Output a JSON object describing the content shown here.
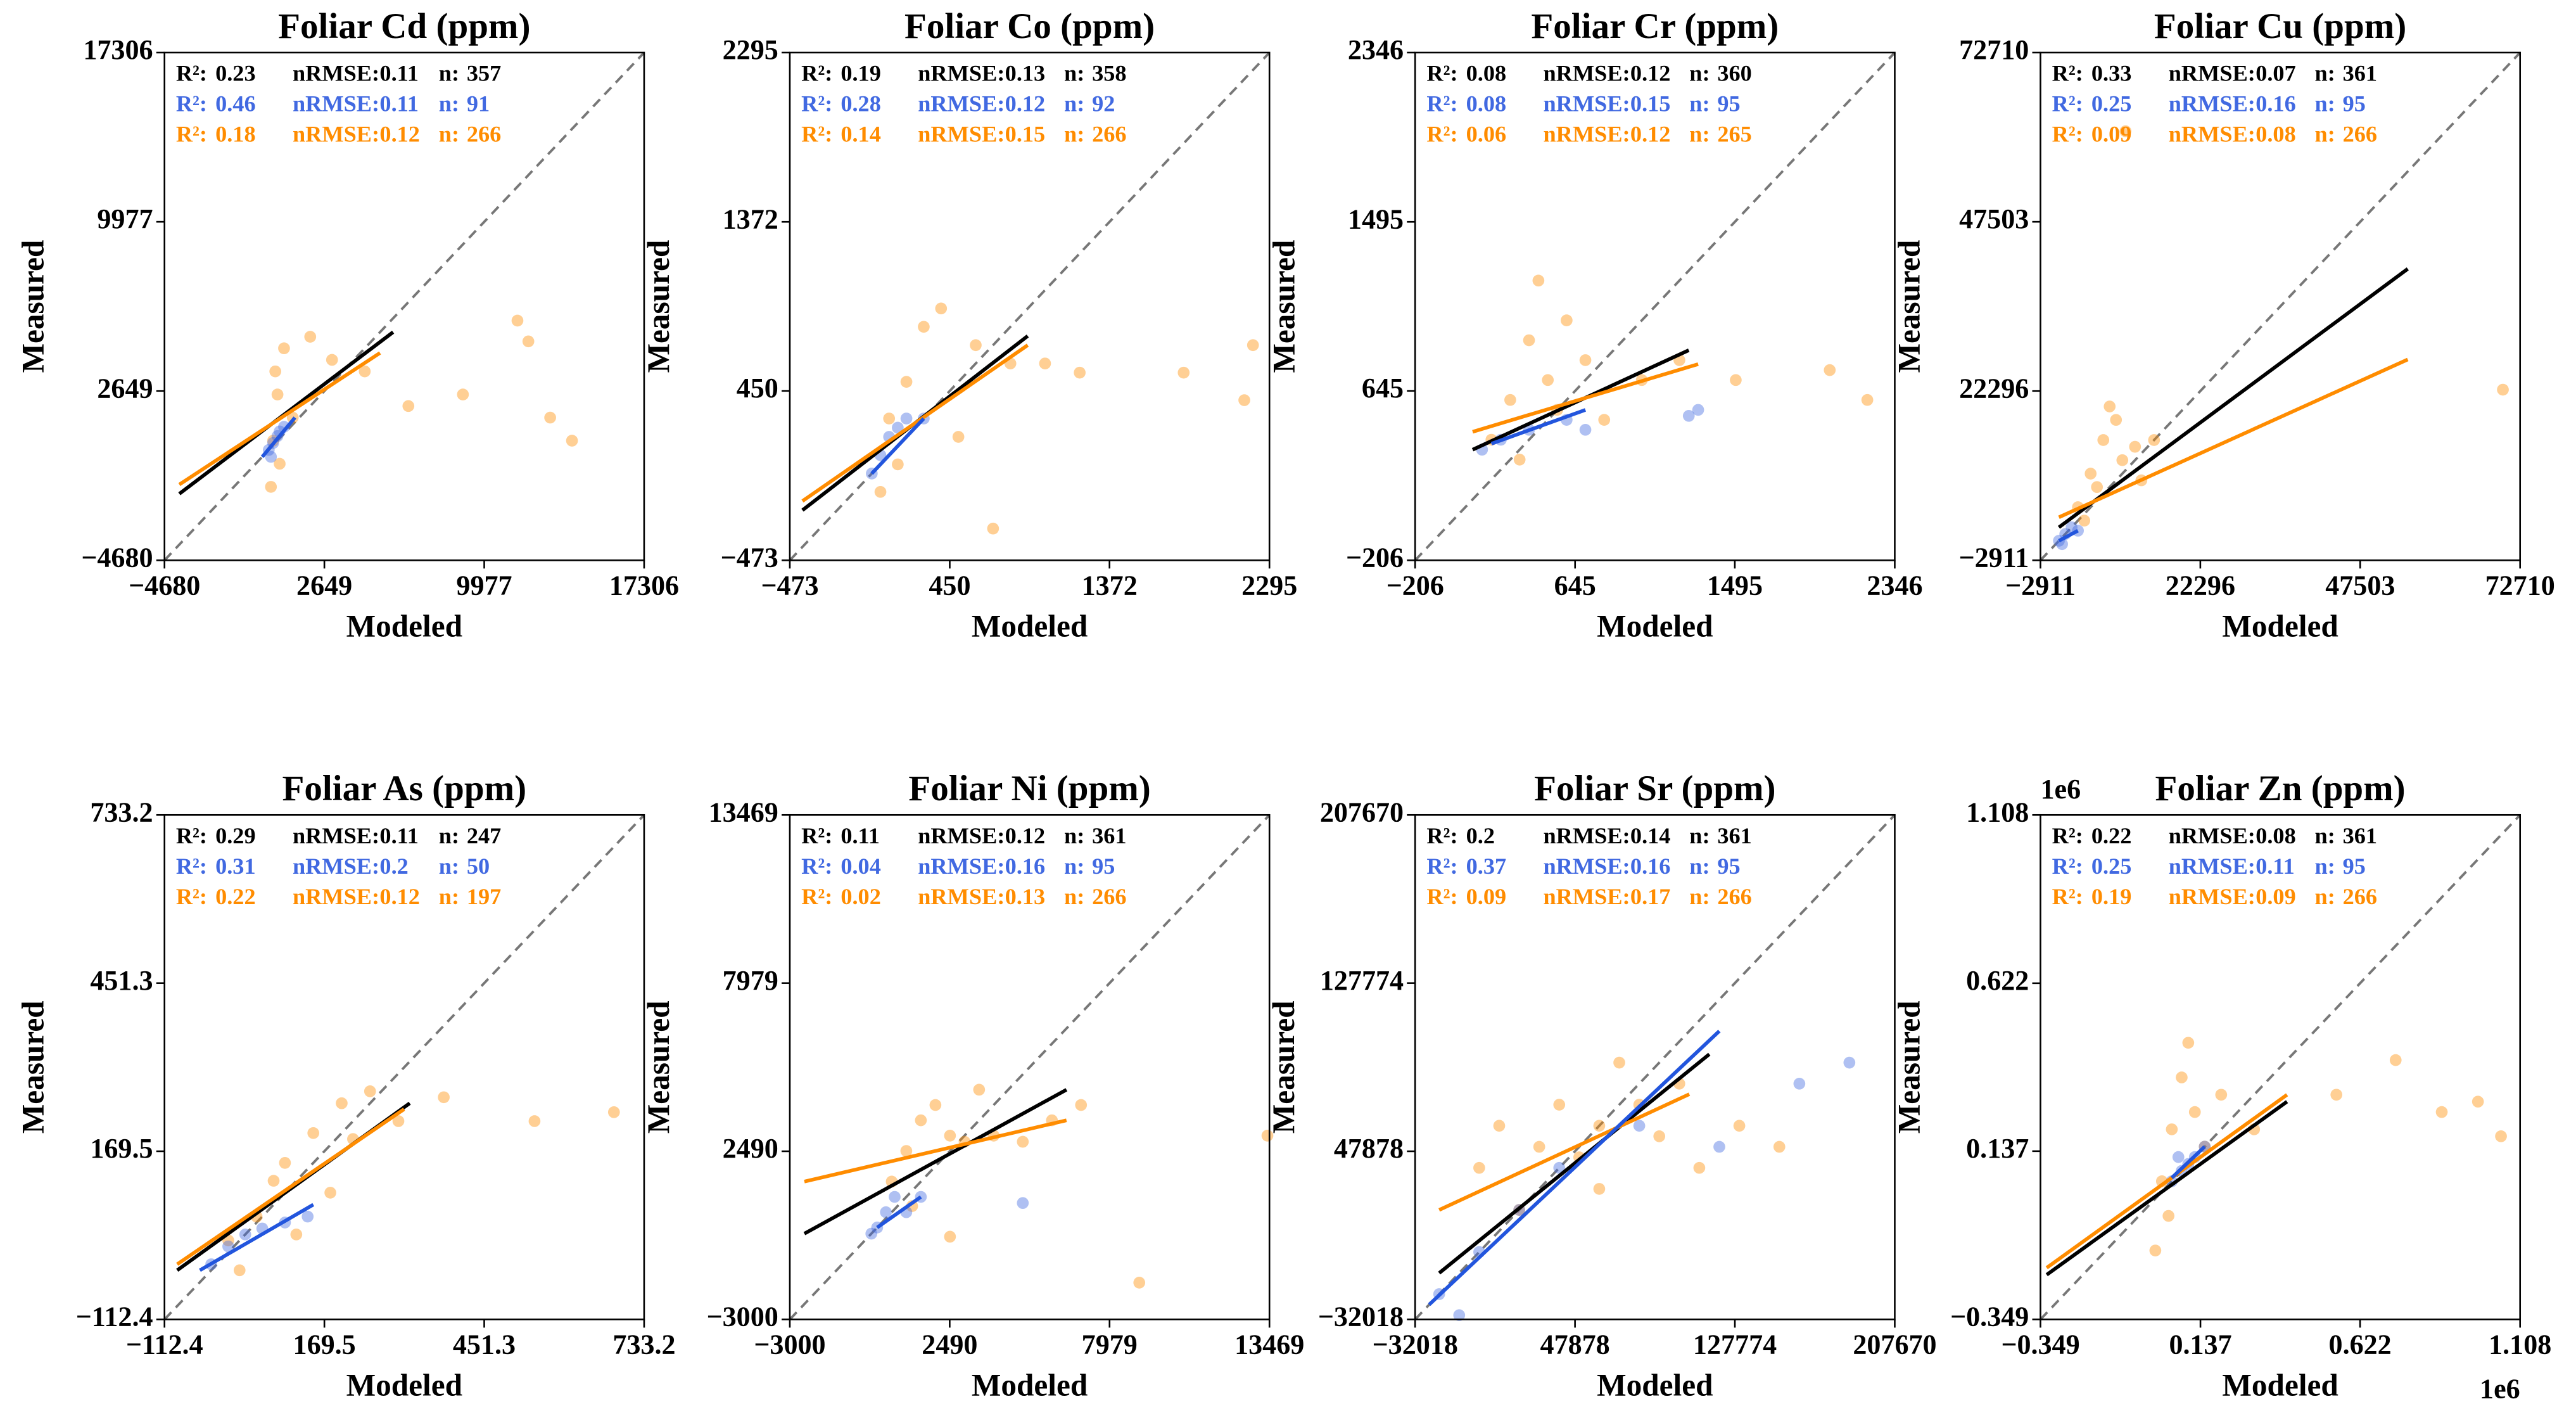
{
  "stat_labels": [
    "R²:",
    "nRMSE:",
    "n:"
  ],
  "chart_data": [
    {
      "type": "scatter",
      "title": "Foliar Cd (ppm)",
      "xlabel": "Modeled",
      "ylabel": "Measured",
      "xlim": [
        -4680,
        17306
      ],
      "ylim": [
        -4680,
        17306
      ],
      "xticks": [
        {
          "value": -4680,
          "label": "−4680"
        },
        2649,
        9977,
        17306
      ],
      "yticks": [
        {
          "value": -4680,
          "label": "−4680"
        },
        2649,
        9977,
        17306
      ],
      "stats": [
        {
          "r2": 0.23,
          "nrmse": 0.11,
          "n": 357,
          "color": "#000000"
        },
        {
          "r2": 0.46,
          "nrmse": 0.11,
          "n": 91,
          "color": "#4169e1"
        },
        {
          "r2": 0.18,
          "nrmse": 0.12,
          "n": 266,
          "color": "#ff8c00"
        }
      ],
      "series": [
        {
          "color": "#ff8c00",
          "x": [
            200,
            300,
            500,
            800,
            400,
            1200,
            2000,
            3000,
            4500,
            6500,
            9000,
            12000,
            13000,
            14000,
            11500,
            600
          ],
          "values": [
            -1500,
            500,
            2500,
            4500,
            3500,
            1500,
            5000,
            4000,
            3500,
            2000,
            2500,
            4800,
            1500,
            500,
            5700,
            -500
          ]
        },
        {
          "color": "#4169e1",
          "x": [
            100,
            300,
            500,
            800,
            200,
            600
          ],
          "values": [
            100,
            400,
            700,
            1100,
            -200,
            900
          ]
        }
      ],
      "fits": [
        {
          "color": "#000000",
          "x": [
            -4000,
            5800
          ],
          "values": [
            -1800,
            5200
          ]
        },
        {
          "color": "#ff8c00",
          "x": [
            -4000,
            5200
          ],
          "values": [
            -1400,
            4300
          ]
        },
        {
          "color": "#2255dd",
          "x": [
            -200,
            1300
          ],
          "values": [
            -200,
            1500
          ]
        }
      ]
    },
    {
      "type": "scatter",
      "title": "Foliar Co (ppm)",
      "xlabel": "Modeled",
      "ylabel": "Measured",
      "xlim": [
        -473,
        2295
      ],
      "ylim": [
        -473,
        2295
      ],
      "xticks": [
        {
          "value": -473,
          "label": "−473"
        },
        450,
        1372,
        2295
      ],
      "yticks": [
        {
          "value": -473,
          "label": "−473"
        },
        450,
        1372,
        2295
      ],
      "stats": [
        {
          "r2": 0.19,
          "nrmse": 0.13,
          "n": 358,
          "color": "#000000"
        },
        {
          "r2": 0.28,
          "nrmse": 0.12,
          "n": 92,
          "color": "#4169e1"
        },
        {
          "r2": 0.14,
          "nrmse": 0.15,
          "n": 266,
          "color": "#ff8c00"
        }
      ],
      "series": [
        {
          "color": "#ff8c00",
          "x": [
            50,
            100,
            200,
            300,
            400,
            600,
            800,
            150,
            1000,
            1200,
            1800,
            2200,
            2150,
            500,
            700
          ],
          "values": [
            -100,
            300,
            500,
            800,
            900,
            700,
            600,
            50,
            600,
            550,
            550,
            700,
            400,
            200,
            -300
          ]
        },
        {
          "color": "#4169e1",
          "x": [
            0,
            50,
            100,
            150,
            200,
            300
          ],
          "values": [
            0,
            100,
            200,
            250,
            300,
            300
          ]
        }
      ],
      "fits": [
        {
          "color": "#000000",
          "x": [
            -400,
            900
          ],
          "values": [
            -200,
            750
          ]
        },
        {
          "color": "#ff8c00",
          "x": [
            -400,
            900
          ],
          "values": [
            -150,
            700
          ]
        },
        {
          "color": "#2255dd",
          "x": [
            0,
            300
          ],
          "values": [
            0,
            300
          ]
        }
      ]
    },
    {
      "type": "scatter",
      "title": "Foliar Cr (ppm)",
      "xlabel": "Modeled",
      "ylabel": "Measured",
      "xlim": [
        -206,
        2346
      ],
      "ylim": [
        -206,
        2346
      ],
      "xticks": [
        {
          "value": -206,
          "label": "−206"
        },
        645,
        1495,
        2346
      ],
      "yticks": [
        {
          "value": -206,
          "label": "−206"
        },
        645,
        1495,
        2346
      ],
      "stats": [
        {
          "r2": 0.08,
          "nrmse": 0.12,
          "n": 360,
          "color": "#000000"
        },
        {
          "r2": 0.08,
          "nrmse": 0.15,
          "n": 95,
          "color": "#4169e1"
        },
        {
          "r2": 0.06,
          "nrmse": 0.12,
          "n": 265,
          "color": "#ff8c00"
        }
      ],
      "series": [
        {
          "color": "#ff8c00",
          "x": [
            200,
            300,
            400,
            500,
            600,
            700,
            800,
            450,
            1000,
            1200,
            1500,
            2000,
            2200,
            350,
            550
          ],
          "values": [
            400,
            600,
            900,
            700,
            1000,
            800,
            500,
            1200,
            700,
            800,
            700,
            750,
            600,
            300,
            550
          ]
        },
        {
          "color": "#4169e1",
          "x": [
            150,
            250,
            400,
            600,
            1250,
            1300,
            700
          ],
          "values": [
            350,
            400,
            450,
            500,
            520,
            550,
            450
          ]
        }
      ],
      "fits": [
        {
          "color": "#000000",
          "x": [
            100,
            1250
          ],
          "values": [
            350,
            850
          ]
        },
        {
          "color": "#ff8c00",
          "x": [
            100,
            1300
          ],
          "values": [
            440,
            780
          ]
        },
        {
          "color": "#2255dd",
          "x": [
            200,
            700
          ],
          "values": [
            380,
            550
          ]
        }
      ]
    },
    {
      "type": "scatter",
      "title": "Foliar Cu (ppm)",
      "xlabel": "Modeled",
      "ylabel": "Measured",
      "xlim": [
        -2911,
        72710
      ],
      "ylim": [
        -2911,
        72710
      ],
      "xticks": [
        {
          "value": -2911,
          "label": "−2911"
        },
        22296,
        47503,
        72710
      ],
      "yticks": [
        {
          "value": -2911,
          "label": "−2911"
        },
        22296,
        47503,
        72710
      ],
      "stats": [
        {
          "r2": 0.33,
          "nrmse": 0.07,
          "n": 361,
          "color": "#000000"
        },
        {
          "r2": 0.25,
          "nrmse": 0.16,
          "n": 95,
          "color": "#4169e1"
        },
        {
          "r2": 0.09,
          "nrmse": 0.08,
          "n": 266,
          "color": "#ff8c00"
        }
      ],
      "series": [
        {
          "color": "#ff8c00",
          "x": [
            3000,
            5000,
            7000,
            8000,
            10000,
            12000,
            15000,
            6000,
            9000,
            4000,
            10500,
            70000,
            13000
          ],
          "values": [
            5000,
            10000,
            15000,
            20000,
            12000,
            14000,
            15000,
            8000,
            18000,
            3000,
            61000,
            22500,
            9000
          ]
        },
        {
          "color": "#4169e1",
          "x": [
            0,
            1000,
            2000,
            500,
            3000
          ],
          "values": [
            0,
            1000,
            2000,
            -500,
            1500
          ]
        }
      ],
      "fits": [
        {
          "color": "#000000",
          "x": [
            0,
            55000
          ],
          "values": [
            2000,
            40500
          ]
        },
        {
          "color": "#ff8c00",
          "x": [
            0,
            55000
          ],
          "values": [
            3500,
            27000
          ]
        },
        {
          "color": "#2255dd",
          "x": [
            0,
            3000
          ],
          "values": [
            0,
            1500
          ]
        }
      ]
    },
    {
      "type": "scatter",
      "title": "Foliar As (ppm)",
      "xlabel": "Modeled",
      "ylabel": "Measured",
      "xlim": [
        -112.4,
        733.2
      ],
      "ylim": [
        -112.4,
        733.2
      ],
      "xticks": [
        {
          "value": -112.4,
          "label": "−112.4"
        },
        169.5,
        451.3,
        733.2
      ],
      "yticks": [
        {
          "value": -112.4,
          "label": "−112.4"
        },
        169.5,
        451.3,
        733.2
      ],
      "stats": [
        {
          "r2": 0.29,
          "nrmse": 0.11,
          "n": 247,
          "color": "#000000"
        },
        {
          "r2": 0.31,
          "nrmse": 0.2,
          "n": 50,
          "color": "#4169e1"
        },
        {
          "r2": 0.22,
          "nrmse": 0.12,
          "n": 197,
          "color": "#ff8c00"
        }
      ],
      "series": [
        {
          "color": "#ff8c00",
          "x": [
            0,
            50,
            100,
            150,
            200,
            250,
            300,
            80,
            180,
            120,
            380,
            540,
            680,
            20,
            220
          ],
          "values": [
            20,
            60,
            150,
            200,
            250,
            270,
            220,
            120,
            100,
            30,
            260,
            220,
            235,
            -30,
            190
          ]
        },
        {
          "color": "#4169e1",
          "x": [
            -30,
            0,
            30,
            60,
            100,
            140
          ],
          "values": [
            -20,
            10,
            30,
            40,
            50,
            60
          ]
        }
      ],
      "fits": [
        {
          "color": "#000000",
          "x": [
            -90,
            320
          ],
          "values": [
            -30,
            250
          ]
        },
        {
          "color": "#ff8c00",
          "x": [
            -90,
            310
          ],
          "values": [
            -20,
            240
          ]
        },
        {
          "color": "#2255dd",
          "x": [
            -50,
            150
          ],
          "values": [
            -30,
            80
          ]
        }
      ]
    },
    {
      "type": "scatter",
      "title": "Foliar Ni (ppm)",
      "xlabel": "Modeled",
      "ylabel": "Measured",
      "xlim": [
        -3000,
        13469
      ],
      "ylim": [
        -3000,
        13469
      ],
      "xticks": [
        {
          "value": -3000,
          "label": "−3000"
        },
        2490,
        7979,
        13469
      ],
      "yticks": [
        {
          "value": -3000,
          "label": "−3000"
        },
        2490,
        7979,
        13469
      ],
      "stats": [
        {
          "r2": 0.11,
          "nrmse": 0.12,
          "n": 361,
          "color": "#000000"
        },
        {
          "r2": 0.04,
          "nrmse": 0.16,
          "n": 95,
          "color": "#4169e1"
        },
        {
          "r2": 0.02,
          "nrmse": 0.13,
          "n": 266,
          "color": "#ff8c00"
        }
      ],
      "series": [
        {
          "color": "#ff8c00",
          "x": [
            500,
            1000,
            1500,
            2000,
            2500,
            3000,
            3500,
            4000,
            5000,
            6000,
            7000,
            9000,
            13400,
            2500,
            1200
          ],
          "values": [
            1500,
            2500,
            3500,
            4000,
            3000,
            2800,
            4500,
            3000,
            2800,
            3500,
            4000,
            -1800,
            3000,
            -300,
            700
          ]
        },
        {
          "color": "#4169e1",
          "x": [
            0,
            300,
            600,
            1000,
            1500,
            5000,
            -200
          ],
          "values": [
            0,
            500,
            1000,
            500,
            1000,
            800,
            -200
          ]
        }
      ],
      "fits": [
        {
          "color": "#000000",
          "x": [
            -2500,
            6500
          ],
          "values": [
            -200,
            4500
          ]
        },
        {
          "color": "#ff8c00",
          "x": [
            -2500,
            6500
          ],
          "values": [
            1500,
            3500
          ]
        },
        {
          "color": "#2255dd",
          "x": [
            0,
            1500
          ],
          "values": [
            0,
            1000
          ]
        }
      ]
    },
    {
      "type": "scatter",
      "title": "Foliar Sr (ppm)",
      "xlabel": "Modeled",
      "ylabel": "Measured",
      "xlim": [
        -32018,
        207670
      ],
      "ylim": [
        -32018,
        207670
      ],
      "xticks": [
        {
          "value": -32018,
          "label": "−32018"
        },
        47878,
        127774,
        207670
      ],
      "yticks": [
        {
          "value": -32018,
          "label": "−32018"
        },
        47878,
        127774,
        207670
      ],
      "stats": [
        {
          "r2": 0.2,
          "nrmse": 0.14,
          "n": 361,
          "color": "#000000"
        },
        {
          "r2": 0.37,
          "nrmse": 0.16,
          "n": 95,
          "color": "#4169e1"
        },
        {
          "r2": 0.09,
          "nrmse": 0.17,
          "n": 266,
          "color": "#ff8c00"
        }
      ],
      "series": [
        {
          "color": "#ff8c00",
          "x": [
            20000,
            30000,
            40000,
            50000,
            60000,
            70000,
            80000,
            90000,
            100000,
            110000,
            130000,
            150000,
            0,
            10000,
            60000
          ],
          "values": [
            20000,
            50000,
            70000,
            45000,
            60000,
            90000,
            70000,
            55000,
            80000,
            40000,
            60000,
            50000,
            40000,
            60000,
            30000
          ]
        },
        {
          "color": "#4169e1",
          "x": [
            -20000,
            0,
            20000,
            40000,
            80000,
            120000,
            160000,
            185000,
            -10000
          ],
          "values": [
            -20000,
            0,
            20000,
            40000,
            60000,
            50000,
            80000,
            90000,
            -30000
          ]
        }
      ],
      "fits": [
        {
          "color": "#000000",
          "x": [
            -20000,
            115000
          ],
          "values": [
            -10000,
            94000
          ]
        },
        {
          "color": "#ff8c00",
          "x": [
            -20000,
            105000
          ],
          "values": [
            20000,
            75000
          ]
        },
        {
          "color": "#2255dd",
          "x": [
            -25000,
            120000
          ],
          "values": [
            -25000,
            105000
          ]
        }
      ]
    },
    {
      "type": "scatter",
      "title": "Foliar Zn (ppm)",
      "xlabel": "Modeled",
      "ylabel": "Measured",
      "x_offset_label": "1e6",
      "y_offset_label": "1e6",
      "xlim": [
        -0.349,
        1.108
      ],
      "ylim": [
        -0.349,
        1.108
      ],
      "xticks": [
        {
          "value": -0.349,
          "label": "−0.349"
        },
        0.137,
        0.622,
        1.108
      ],
      "yticks": [
        {
          "value": -0.349,
          "label": "−0.349"
        },
        0.137,
        0.622,
        1.108
      ],
      "stats": [
        {
          "r2": 0.22,
          "nrmse": 0.08,
          "n": 361,
          "color": "#000000"
        },
        {
          "r2": 0.25,
          "nrmse": 0.11,
          "n": 95,
          "color": "#4169e1"
        },
        {
          "r2": 0.19,
          "nrmse": 0.09,
          "n": 266,
          "color": "#ff8c00"
        }
      ],
      "series": [
        {
          "color": "#ff8c00",
          "x": [
            0.0,
            0.02,
            0.05,
            0.08,
            0.1,
            0.12,
            0.15,
            0.2,
            0.3,
            0.55,
            0.73,
            0.87,
            0.98,
            1.05,
            0.04
          ],
          "values": [
            -0.15,
            0.05,
            0.2,
            0.35,
            0.45,
            0.25,
            0.15,
            0.3,
            0.2,
            0.3,
            0.4,
            0.25,
            0.28,
            0.18,
            -0.05
          ]
        },
        {
          "color": "#4169e1",
          "x": [
            0.05,
            0.08,
            0.1,
            0.12,
            0.15,
            0.07
          ],
          "values": [
            0.05,
            0.08,
            0.1,
            0.12,
            0.15,
            0.12
          ]
        }
      ],
      "fits": [
        {
          "color": "#000000",
          "x": [
            -0.33,
            0.4
          ],
          "values": [
            -0.22,
            0.28
          ]
        },
        {
          "color": "#ff8c00",
          "x": [
            -0.33,
            0.4
          ],
          "values": [
            -0.2,
            0.3
          ]
        },
        {
          "color": "#2255dd",
          "x": [
            0.05,
            0.15
          ],
          "values": [
            0.06,
            0.15
          ]
        }
      ]
    }
  ]
}
